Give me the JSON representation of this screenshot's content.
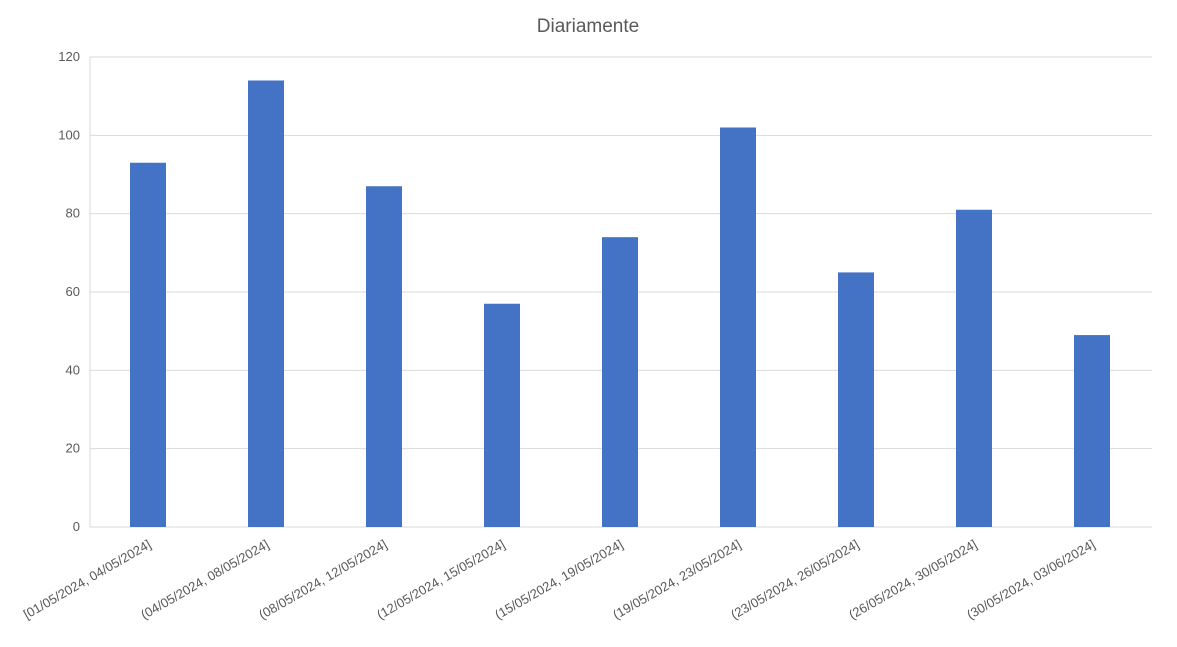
{
  "chart_data": {
    "type": "bar",
    "title": "Diariamente",
    "xlabel": "",
    "ylabel": "",
    "ylim": [
      0,
      120
    ],
    "yticks": [
      0,
      20,
      40,
      60,
      80,
      100,
      120
    ],
    "grid": true,
    "legend": "none",
    "bar_color": "#4472c4",
    "categories": [
      "[01/05/2024, 04/05/2024]",
      "(04/05/2024, 08/05/2024]",
      "(08/05/2024, 12/05/2024]",
      "(12/05/2024, 15/05/2024]",
      "(15/05/2024, 19/05/2024]",
      "(19/05/2024, 23/05/2024]",
      "(23/05/2024, 26/05/2024]",
      "(26/05/2024, 30/05/2024]",
      "(30/05/2024, 03/06/2024]"
    ],
    "values": [
      93,
      114,
      87,
      57,
      74,
      102,
      65,
      81,
      49
    ]
  }
}
